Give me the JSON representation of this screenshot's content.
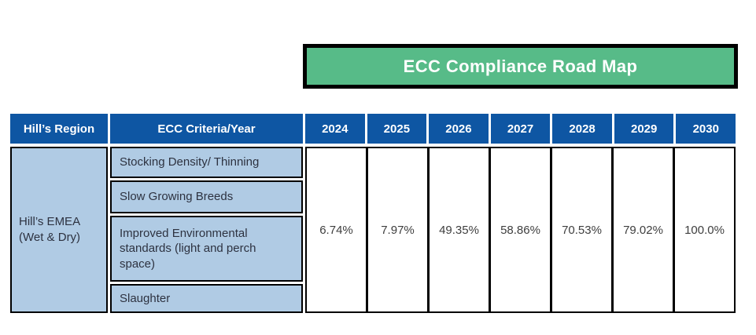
{
  "banner": {
    "title": "ECC Compliance Road Map"
  },
  "table": {
    "header": {
      "region": "Hill’s Region",
      "criteria": "ECC Criteria/Year",
      "years": [
        "2024",
        "2025",
        "2026",
        "2027",
        "2028",
        "2029",
        "2030"
      ]
    },
    "region": {
      "name": "Hill’s EMEA",
      "scope": "(Wet & Dry)"
    },
    "criteria": [
      "Stocking Density/ Thinning",
      "Slow Growing Breeds",
      "Improved Environmental standards (light and perch space)",
      "Slaughter"
    ],
    "values": [
      "6.74%",
      "7.97%",
      "49.35%",
      "58.86%",
      "70.53%",
      "79.02%",
      "100.0%"
    ]
  },
  "chart_data": {
    "type": "table",
    "title": "ECC Compliance Road Map",
    "columns": [
      "Hill’s Region",
      "ECC Criteria/Year",
      "2024",
      "2025",
      "2026",
      "2027",
      "2028",
      "2029",
      "2030"
    ],
    "region": "Hill’s EMEA (Wet & Dry)",
    "criteria": [
      "Stocking Density/ Thinning",
      "Slow Growing Breeds",
      "Improved Environmental standards (light and perch space)",
      "Slaughter"
    ],
    "compliance_percent_by_year": {
      "2024": 6.74,
      "2025": 7.97,
      "2026": 49.35,
      "2027": 58.86,
      "2028": 70.53,
      "2029": 79.02,
      "2030": 100.0
    }
  },
  "colors": {
    "header_blue": "#0e56a3",
    "cell_blue": "#b0cbe4",
    "banner_green": "#57bb88",
    "border_black": "#000000",
    "title_text": "#ffffff"
  }
}
